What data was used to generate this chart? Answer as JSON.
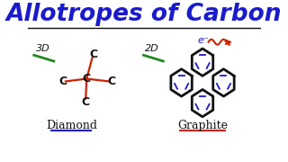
{
  "title": "Allotropes of Carbon",
  "title_color": "#1a1acc",
  "title_fontsize": 19,
  "bg_color": "#FFFFFF",
  "label_diamond": "Diamond",
  "label_graphite": "Graphite",
  "label_3d": "3D",
  "label_2d": "2D",
  "label_eminus": "e⁻",
  "red": "#CC2200",
  "green": "#228822",
  "blue_dark": "#1a1acc",
  "black": "#111111",
  "bond_lw": 1.6,
  "hex_lw": 2.0
}
